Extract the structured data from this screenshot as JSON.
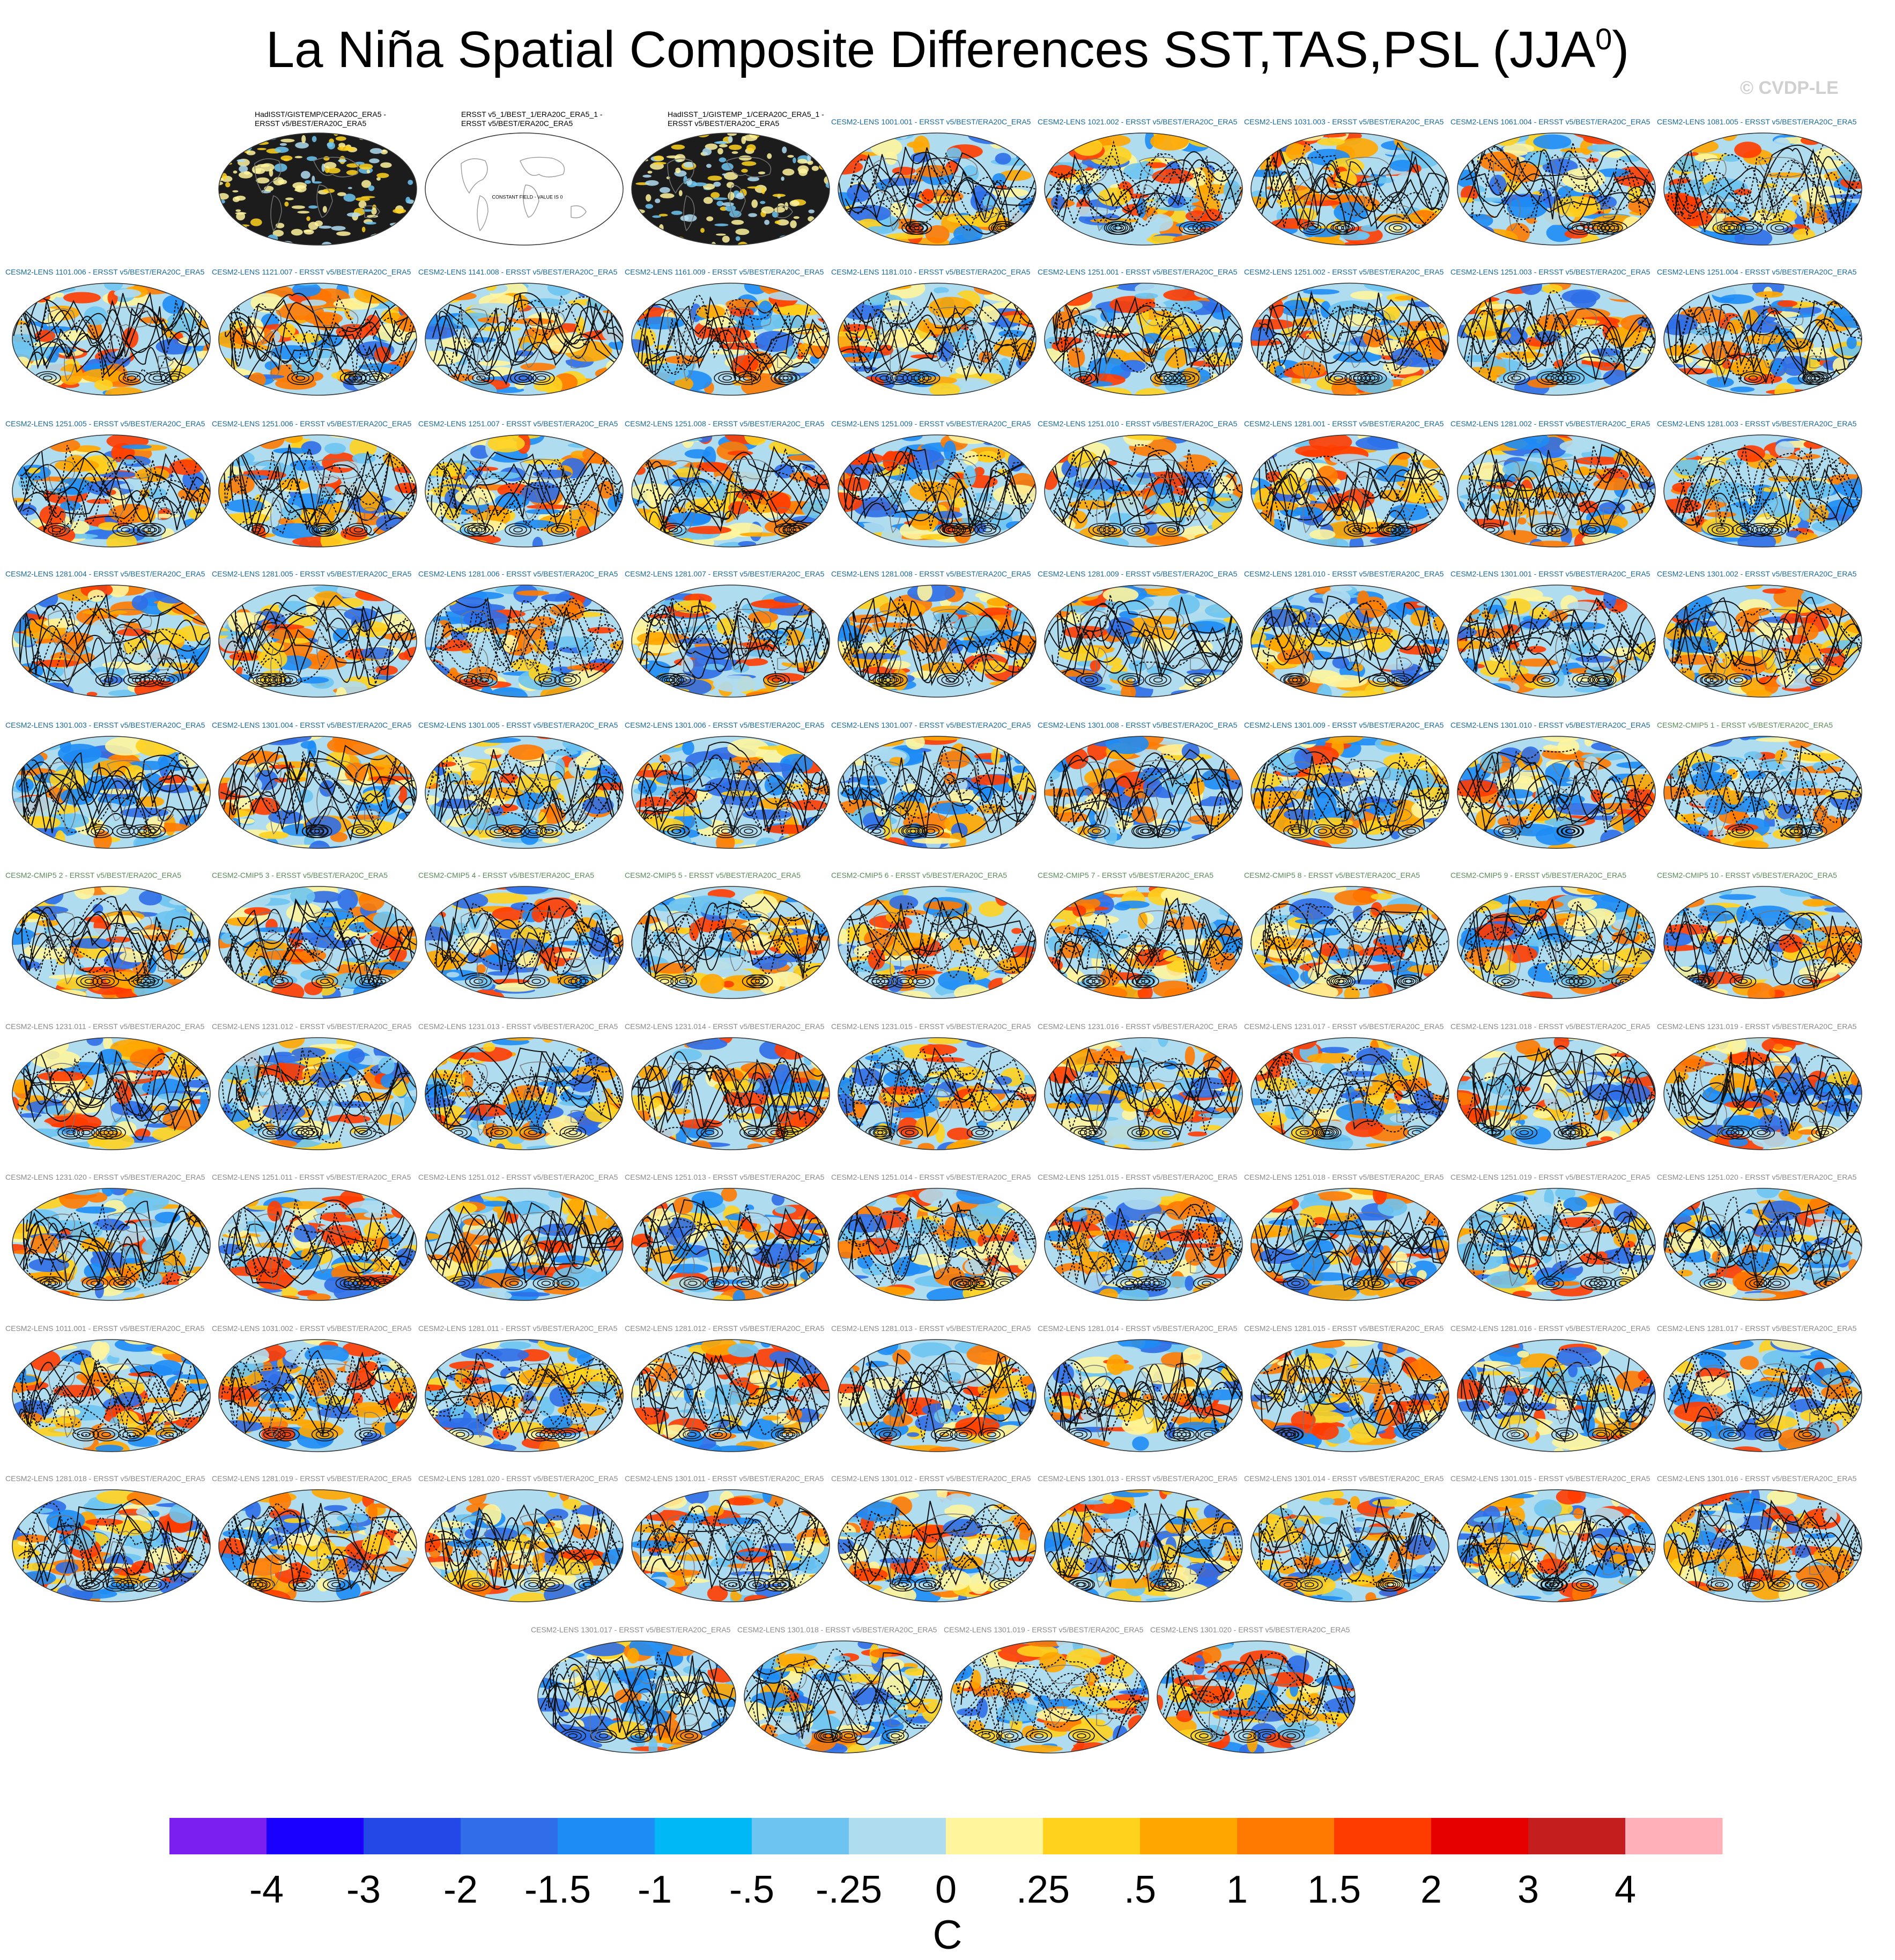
{
  "title": "La Niña Spatial Composite Differences SST,TAS,PSL (JJA",
  "title_sup": "0",
  "title_close": ")",
  "watermark": "© CVDP-LE",
  "chart_data": {
    "type": "heatmap",
    "description_projection": "Robinson global map panels",
    "panels": [
      {
        "title": "HadISST/GISTEMP/CERA20C_ERA5 -\nERSST v5/BEST/ERA20C_ERA5",
        "color": "#000000",
        "style": "obs-stippled"
      },
      {
        "title": "ERSST v5_1/BEST_1/ERA20C_ERA5_1 -\nERSST v5/BEST/ERA20C_ERA5",
        "color": "#000000",
        "style": "constant",
        "note": "CONSTANT FIELD - VALUE IS 0"
      },
      {
        "title": "HadISST_1/GISTEMP_1/CERA20C_ERA5_1 -\nERSST v5/BEST/ERA20C_ERA5",
        "color": "#000000",
        "style": "obs-stippled"
      },
      {
        "title": "CESM2-LENS 1001.001 - ERSST v5/BEST/ERA20C_ERA5",
        "color": "#1a6a9a"
      },
      {
        "title": "CESM2-LENS 1021.002 - ERSST v5/BEST/ERA20C_ERA5",
        "color": "#1a6a9a"
      },
      {
        "title": "CESM2-LENS 1031.003 - ERSST v5/BEST/ERA20C_ERA5",
        "color": "#1a6a9a"
      },
      {
        "title": "CESM2-LENS 1061.004 - ERSST v5/BEST/ERA20C_ERA5",
        "color": "#1a6a9a"
      },
      {
        "title": "CESM2-LENS 1081.005 - ERSST v5/BEST/ERA20C_ERA5",
        "color": "#1a6a9a"
      },
      {
        "title": "CESM2-LENS 1101.006 - ERSST v5/BEST/ERA20C_ERA5",
        "color": "#1a6a9a"
      },
      {
        "title": "CESM2-LENS 1121.007 - ERSST v5/BEST/ERA20C_ERA5",
        "color": "#1a6a9a"
      },
      {
        "title": "CESM2-LENS 1141.008 - ERSST v5/BEST/ERA20C_ERA5",
        "color": "#1a6a9a"
      },
      {
        "title": "CESM2-LENS 1161.009 - ERSST v5/BEST/ERA20C_ERA5",
        "color": "#1a6a9a"
      },
      {
        "title": "CESM2-LENS 1181.010 - ERSST v5/BEST/ERA20C_ERA5",
        "color": "#1a6a9a"
      },
      {
        "title": "CESM2-LENS 1251.001 - ERSST v5/BEST/ERA20C_ERA5",
        "color": "#1a6a9a"
      },
      {
        "title": "CESM2-LENS 1251.002 - ERSST v5/BEST/ERA20C_ERA5",
        "color": "#1a6a9a"
      },
      {
        "title": "CESM2-LENS 1251.003 - ERSST v5/BEST/ERA20C_ERA5",
        "color": "#1a6a9a"
      },
      {
        "title": "CESM2-LENS 1251.004 - ERSST v5/BEST/ERA20C_ERA5",
        "color": "#1a6a9a"
      },
      {
        "title": "CESM2-LENS 1251.005 - ERSST v5/BEST/ERA20C_ERA5",
        "color": "#1a6a9a"
      },
      {
        "title": "CESM2-LENS 1251.006 - ERSST v5/BEST/ERA20C_ERA5",
        "color": "#1a6a9a"
      },
      {
        "title": "CESM2-LENS 1251.007 - ERSST v5/BEST/ERA20C_ERA5",
        "color": "#1a6a9a"
      },
      {
        "title": "CESM2-LENS 1251.008 - ERSST v5/BEST/ERA20C_ERA5",
        "color": "#1a6a9a"
      },
      {
        "title": "CESM2-LENS 1251.009 - ERSST v5/BEST/ERA20C_ERA5",
        "color": "#1a6a9a"
      },
      {
        "title": "CESM2-LENS 1251.010 - ERSST v5/BEST/ERA20C_ERA5",
        "color": "#1a6a9a"
      },
      {
        "title": "CESM2-LENS 1281.001 - ERSST v5/BEST/ERA20C_ERA5",
        "color": "#1a6a9a"
      },
      {
        "title": "CESM2-LENS 1281.002 - ERSST v5/BEST/ERA20C_ERA5",
        "color": "#1a6a9a"
      },
      {
        "title": "CESM2-LENS 1281.003 - ERSST v5/BEST/ERA20C_ERA5",
        "color": "#1a6a9a"
      },
      {
        "title": "CESM2-LENS 1281.004 - ERSST v5/BEST/ERA20C_ERA5",
        "color": "#1a6a9a"
      },
      {
        "title": "CESM2-LENS 1281.005 - ERSST v5/BEST/ERA20C_ERA5",
        "color": "#1a6a9a"
      },
      {
        "title": "CESM2-LENS 1281.006 - ERSST v5/BEST/ERA20C_ERA5",
        "color": "#1a6a9a"
      },
      {
        "title": "CESM2-LENS 1281.007 - ERSST v5/BEST/ERA20C_ERA5",
        "color": "#1a6a9a"
      },
      {
        "title": "CESM2-LENS 1281.008 - ERSST v5/BEST/ERA20C_ERA5",
        "color": "#1a6a9a"
      },
      {
        "title": "CESM2-LENS 1281.009 - ERSST v5/BEST/ERA20C_ERA5",
        "color": "#1a6a9a"
      },
      {
        "title": "CESM2-LENS 1281.010 - ERSST v5/BEST/ERA20C_ERA5",
        "color": "#1a6a9a"
      },
      {
        "title": "CESM2-LENS 1301.001 - ERSST v5/BEST/ERA20C_ERA5",
        "color": "#1a6a9a"
      },
      {
        "title": "CESM2-LENS 1301.002 - ERSST v5/BEST/ERA20C_ERA5",
        "color": "#1a6a9a"
      },
      {
        "title": "CESM2-LENS 1301.003 - ERSST v5/BEST/ERA20C_ERA5",
        "color": "#1a6a9a"
      },
      {
        "title": "CESM2-LENS 1301.004 - ERSST v5/BEST/ERA20C_ERA5",
        "color": "#1a6a9a"
      },
      {
        "title": "CESM2-LENS 1301.005 - ERSST v5/BEST/ERA20C_ERA5",
        "color": "#1a6a9a"
      },
      {
        "title": "CESM2-LENS 1301.006 - ERSST v5/BEST/ERA20C_ERA5",
        "color": "#1a6a9a"
      },
      {
        "title": "CESM2-LENS 1301.007 - ERSST v5/BEST/ERA20C_ERA5",
        "color": "#1a6a9a"
      },
      {
        "title": "CESM2-LENS 1301.008 - ERSST v5/BEST/ERA20C_ERA5",
        "color": "#1a6a9a"
      },
      {
        "title": "CESM2-LENS 1301.009 - ERSST v5/BEST/ERA20C_ERA5",
        "color": "#1a6a9a"
      },
      {
        "title": "CESM2-LENS 1301.010 - ERSST v5/BEST/ERA20C_ERA5",
        "color": "#1a6a9a"
      },
      {
        "title": "CESM2-CMIP5 1 - ERSST v5/BEST/ERA20C_ERA5",
        "color": "#5a8a5a"
      },
      {
        "title": "CESM2-CMIP5 2 - ERSST v5/BEST/ERA20C_ERA5",
        "color": "#5a8a5a"
      },
      {
        "title": "CESM2-CMIP5 3 - ERSST v5/BEST/ERA20C_ERA5",
        "color": "#5a8a5a"
      },
      {
        "title": "CESM2-CMIP5 4 - ERSST v5/BEST/ERA20C_ERA5",
        "color": "#5a8a5a"
      },
      {
        "title": "CESM2-CMIP5 5 - ERSST v5/BEST/ERA20C_ERA5",
        "color": "#5a8a5a"
      },
      {
        "title": "CESM2-CMIP5 6 - ERSST v5/BEST/ERA20C_ERA5",
        "color": "#5a8a5a"
      },
      {
        "title": "CESM2-CMIP5 7 - ERSST v5/BEST/ERA20C_ERA5",
        "color": "#5a8a5a"
      },
      {
        "title": "CESM2-CMIP5 8 - ERSST v5/BEST/ERA20C_ERA5",
        "color": "#5a8a5a"
      },
      {
        "title": "CESM2-CMIP5 9 - ERSST v5/BEST/ERA20C_ERA5",
        "color": "#5a8a5a"
      },
      {
        "title": "CESM2-CMIP5 10 - ERSST v5/BEST/ERA20C_ERA5",
        "color": "#5a8a5a"
      },
      {
        "title": "CESM2-LENS 1231.011 - ERSST v5/BEST/ERA20C_ERA5",
        "color": "#8a8a8a"
      },
      {
        "title": "CESM2-LENS 1231.012 - ERSST v5/BEST/ERA20C_ERA5",
        "color": "#8a8a8a"
      },
      {
        "title": "CESM2-LENS 1231.013 - ERSST v5/BEST/ERA20C_ERA5",
        "color": "#8a8a8a"
      },
      {
        "title": "CESM2-LENS 1231.014 - ERSST v5/BEST/ERA20C_ERA5",
        "color": "#8a8a8a"
      },
      {
        "title": "CESM2-LENS 1231.015 - ERSST v5/BEST/ERA20C_ERA5",
        "color": "#8a8a8a"
      },
      {
        "title": "CESM2-LENS 1231.016 - ERSST v5/BEST/ERA20C_ERA5",
        "color": "#8a8a8a"
      },
      {
        "title": "CESM2-LENS 1231.017 - ERSST v5/BEST/ERA20C_ERA5",
        "color": "#8a8a8a"
      },
      {
        "title": "CESM2-LENS 1231.018 - ERSST v5/BEST/ERA20C_ERA5",
        "color": "#8a8a8a"
      },
      {
        "title": "CESM2-LENS 1231.019 - ERSST v5/BEST/ERA20C_ERA5",
        "color": "#8a8a8a"
      },
      {
        "title": "CESM2-LENS 1231.020 - ERSST v5/BEST/ERA20C_ERA5",
        "color": "#8a8a8a"
      },
      {
        "title": "CESM2-LENS 1251.011 - ERSST v5/BEST/ERA20C_ERA5",
        "color": "#8a8a8a"
      },
      {
        "title": "CESM2-LENS 1251.012 - ERSST v5/BEST/ERA20C_ERA5",
        "color": "#8a8a8a"
      },
      {
        "title": "CESM2-LENS 1251.013 - ERSST v5/BEST/ERA20C_ERA5",
        "color": "#8a8a8a"
      },
      {
        "title": "CESM2-LENS 1251.014 - ERSST v5/BEST/ERA20C_ERA5",
        "color": "#8a8a8a"
      },
      {
        "title": "CESM2-LENS 1251.015 - ERSST v5/BEST/ERA20C_ERA5",
        "color": "#8a8a8a"
      },
      {
        "title": "CESM2-LENS 1251.018 - ERSST v5/BEST/ERA20C_ERA5",
        "color": "#8a8a8a"
      },
      {
        "title": "CESM2-LENS 1251.019 - ERSST v5/BEST/ERA20C_ERA5",
        "color": "#8a8a8a"
      },
      {
        "title": "CESM2-LENS 1251.020 - ERSST v5/BEST/ERA20C_ERA5",
        "color": "#8a8a8a"
      },
      {
        "title": "CESM2-LENS 1011.001 - ERSST v5/BEST/ERA20C_ERA5",
        "color": "#8a8a8a"
      },
      {
        "title": "CESM2-LENS 1031.002 - ERSST v5/BEST/ERA20C_ERA5",
        "color": "#8a8a8a"
      },
      {
        "title": "CESM2-LENS 1281.011 - ERSST v5/BEST/ERA20C_ERA5",
        "color": "#8a8a8a"
      },
      {
        "title": "CESM2-LENS 1281.012 - ERSST v5/BEST/ERA20C_ERA5",
        "color": "#8a8a8a"
      },
      {
        "title": "CESM2-LENS 1281.013 - ERSST v5/BEST/ERA20C_ERA5",
        "color": "#8a8a8a"
      },
      {
        "title": "CESM2-LENS 1281.014 - ERSST v5/BEST/ERA20C_ERA5",
        "color": "#8a8a8a"
      },
      {
        "title": "CESM2-LENS 1281.015 - ERSST v5/BEST/ERA20C_ERA5",
        "color": "#8a8a8a"
      },
      {
        "title": "CESM2-LENS 1281.016 - ERSST v5/BEST/ERA20C_ERA5",
        "color": "#8a8a8a"
      },
      {
        "title": "CESM2-LENS 1281.017 - ERSST v5/BEST/ERA20C_ERA5",
        "color": "#8a8a8a"
      },
      {
        "title": "CESM2-LENS 1281.018 - ERSST v5/BEST/ERA20C_ERA5",
        "color": "#8a8a8a"
      },
      {
        "title": "CESM2-LENS 1281.019 - ERSST v5/BEST/ERA20C_ERA5",
        "color": "#8a8a8a"
      },
      {
        "title": "CESM2-LENS 1281.020 - ERSST v5/BEST/ERA20C_ERA5",
        "color": "#8a8a8a"
      },
      {
        "title": "CESM2-LENS 1301.011 - ERSST v5/BEST/ERA20C_ERA5",
        "color": "#8a8a8a"
      },
      {
        "title": "CESM2-LENS 1301.012 - ERSST v5/BEST/ERA20C_ERA5",
        "color": "#8a8a8a"
      },
      {
        "title": "CESM2-LENS 1301.013 - ERSST v5/BEST/ERA20C_ERA5",
        "color": "#8a8a8a"
      },
      {
        "title": "CESM2-LENS 1301.014 - ERSST v5/BEST/ERA20C_ERA5",
        "color": "#8a8a8a"
      },
      {
        "title": "CESM2-LENS 1301.015 - ERSST v5/BEST/ERA20C_ERA5",
        "color": "#8a8a8a"
      },
      {
        "title": "CESM2-LENS 1301.016 - ERSST v5/BEST/ERA20C_ERA5",
        "color": "#8a8a8a"
      },
      {
        "title": "CESM2-LENS 1301.017 - ERSST v5/BEST/ERA20C_ERA5",
        "color": "#8a8a8a"
      },
      {
        "title": "CESM2-LENS 1301.018 - ERSST v5/BEST/ERA20C_ERA5",
        "color": "#8a8a8a"
      },
      {
        "title": "CESM2-LENS 1301.019 - ERSST v5/BEST/ERA20C_ERA5",
        "color": "#8a8a8a"
      },
      {
        "title": "CESM2-LENS 1301.020 - ERSST v5/BEST/ERA20C_ERA5",
        "color": "#8a8a8a"
      }
    ],
    "colorbar": {
      "label": "C",
      "tick_labels": [
        "-4",
        "-3",
        "-2",
        "-1.5",
        "-1",
        "-.5",
        "-.25",
        "0",
        ".25",
        ".5",
        "1",
        "1.5",
        "2",
        "3",
        "4"
      ],
      "colors": [
        "#7b1ff0",
        "#1a00ff",
        "#2448e8",
        "#2f6ee8",
        "#1e8cf5",
        "#00b8f5",
        "#6ec4f0",
        "#b0dcf0",
        "#fff59d",
        "#ffd21e",
        "#ffa600",
        "#ff7a00",
        "#ff3c00",
        "#e60000",
        "#c41e1e",
        "#ffb0b8"
      ]
    },
    "field_colors": {
      "cool": [
        "#b0dcf0",
        "#6ec4f0",
        "#1e8cf5",
        "#2f6ee8"
      ],
      "warm": [
        "#fff59d",
        "#ffd21e",
        "#ffa600",
        "#ff7a00",
        "#ff3c00"
      ]
    }
  }
}
